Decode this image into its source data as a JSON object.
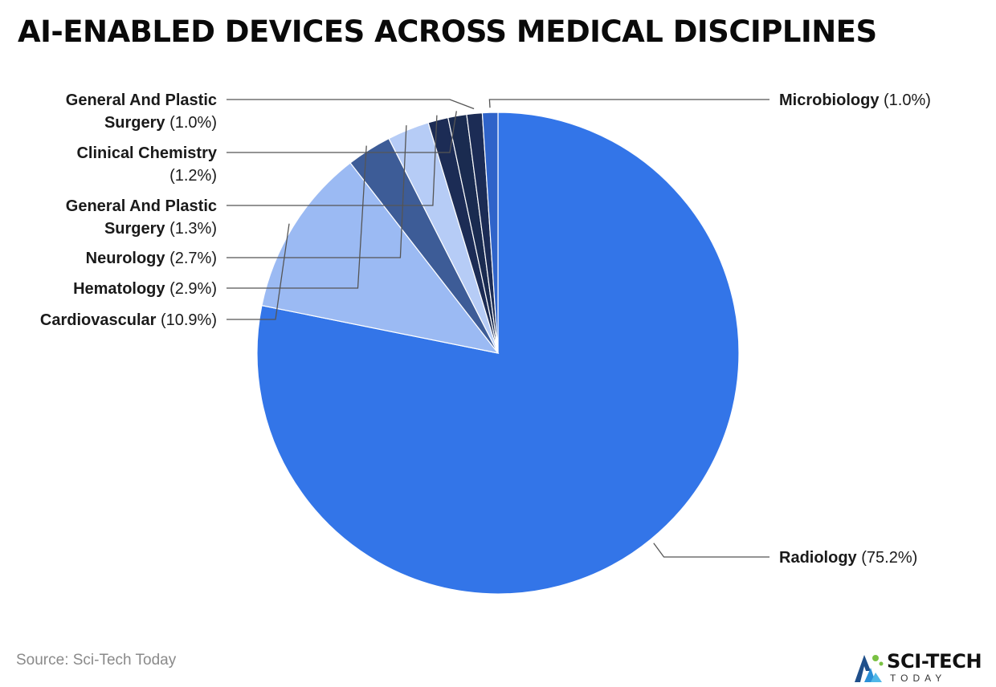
{
  "title": "AI-ENABLED DEVICES ACROSS MEDICAL DISCIPLINES",
  "source": "Source: Sci-Tech Today",
  "logo": {
    "name": "SCI-TECH",
    "subtitle": "TODAY",
    "icon": "sci-tech-logo-icon"
  },
  "chart_data": {
    "type": "pie",
    "title": "AI-ENABLED DEVICES ACROSS MEDICAL DISCIPLINES",
    "slices": [
      {
        "name": "Radiology",
        "value": 75.2,
        "label": "(75.2%)",
        "color": "#3375e8"
      },
      {
        "name": "Cardiovascular",
        "value": 10.9,
        "label": "(10.9%)",
        "color": "#9bbaf3"
      },
      {
        "name": "Hematology",
        "value": 2.9,
        "label": "(2.9%)",
        "color": "#3d5c97"
      },
      {
        "name": "Neurology",
        "value": 2.7,
        "label": "(2.7%)",
        "color": "#b6ccf6"
      },
      {
        "name": "General And Plastic Surgery",
        "value": 1.3,
        "label": "(1.3%)",
        "color": "#1c2c55"
      },
      {
        "name": "Clinical Chemistry",
        "value": 1.2,
        "label": "(1.2%)",
        "color": "#1a2b50"
      },
      {
        "name": "General And Plastic Surgery",
        "value": 1.0,
        "label": "(1.0%)",
        "color": "#1c2c55"
      },
      {
        "name": "Microbiology",
        "value": 1.0,
        "label": "(1.0%)",
        "color": "#2f63c9"
      }
    ],
    "legend": "none",
    "label_placement": "outside-with-leader-lines"
  }
}
